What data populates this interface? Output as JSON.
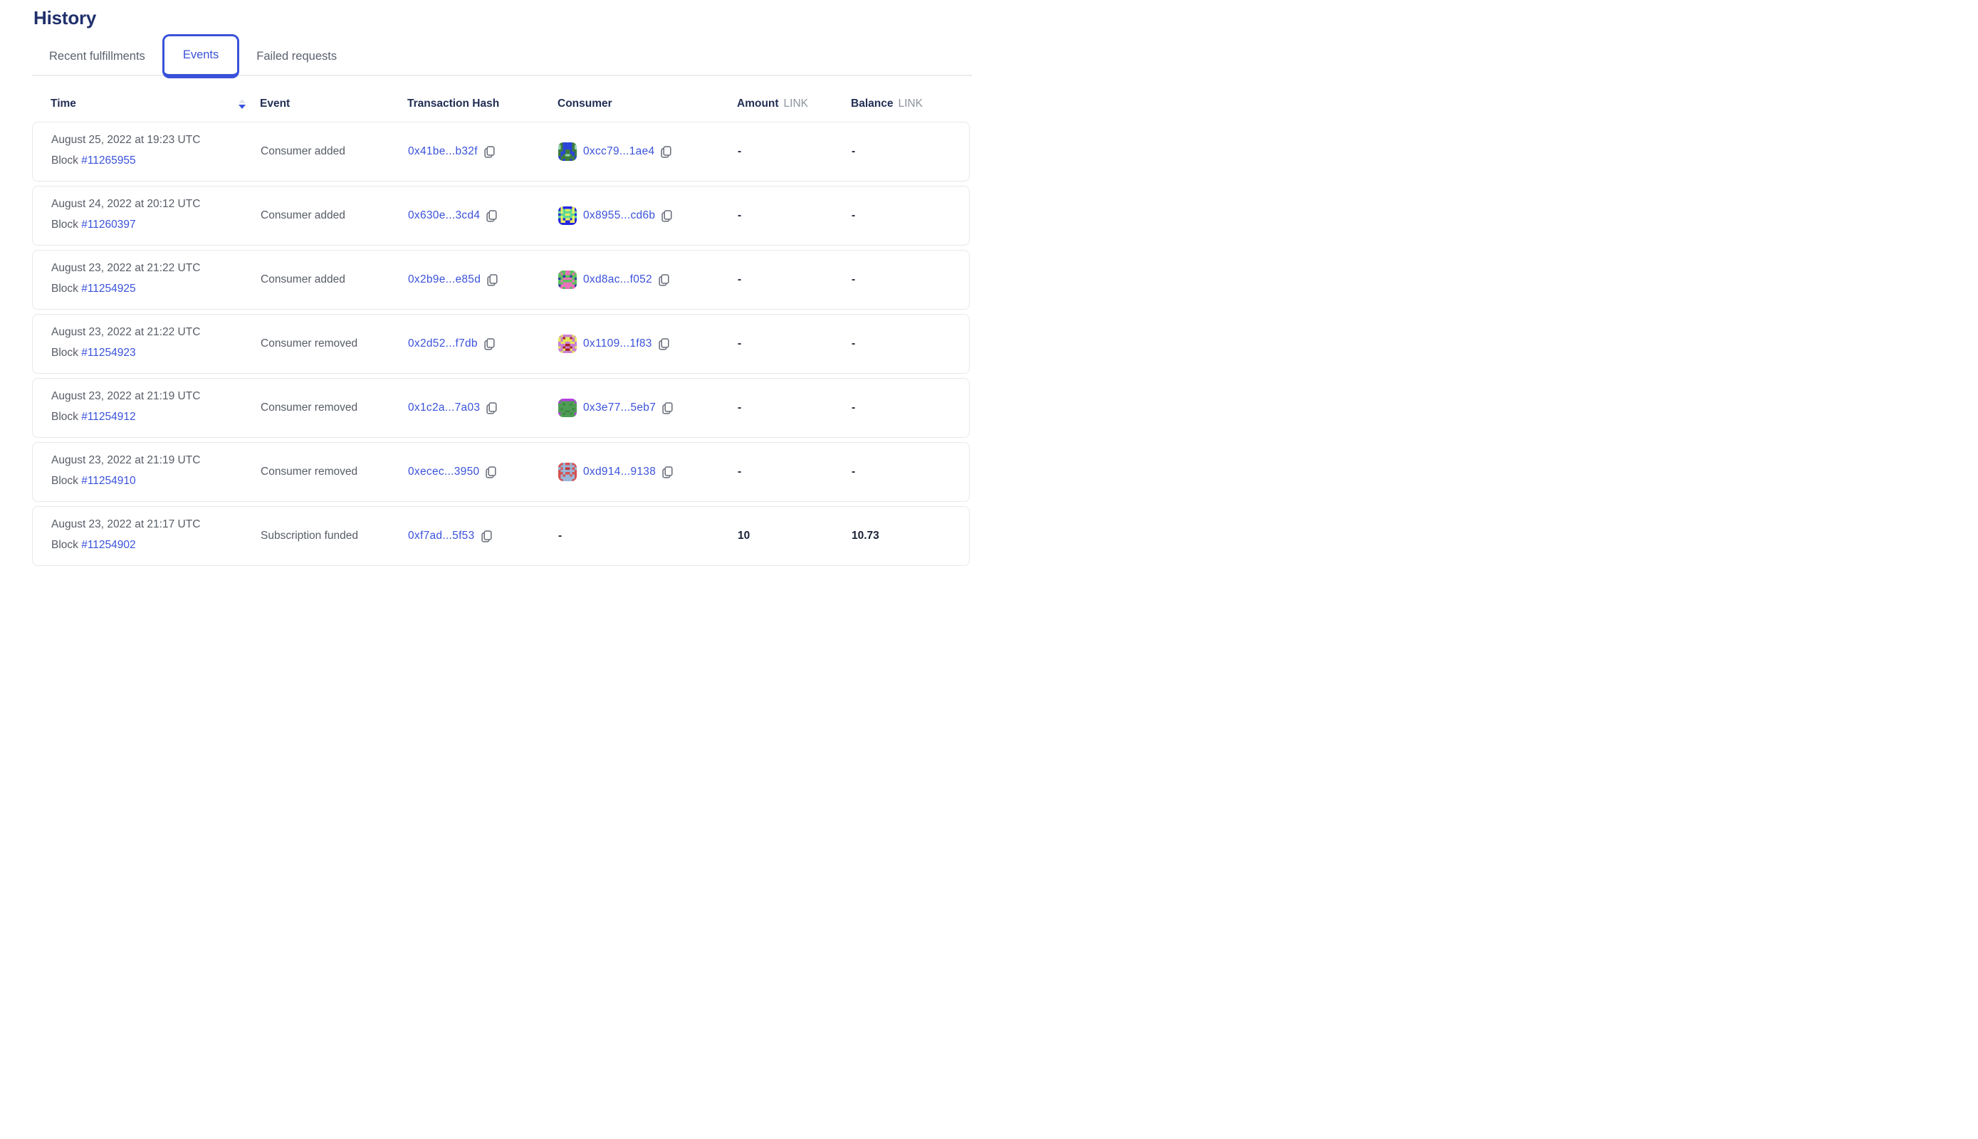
{
  "page": {
    "title": "History"
  },
  "tabs": [
    {
      "label": "Recent fulfillments",
      "active": false
    },
    {
      "label": "Events",
      "active": true
    },
    {
      "label": "Failed requests",
      "active": false
    }
  ],
  "sort": {
    "column": "time",
    "direction": "desc"
  },
  "table": {
    "columns": {
      "time": "Time",
      "event": "Event",
      "tx": "Transaction Hash",
      "consumer": "Consumer",
      "amount": "Amount",
      "amount_unit": "LINK",
      "balance": "Balance",
      "balance_unit": "LINK"
    },
    "rows": [
      {
        "date": "August 25, 2022 at 19:23 UTC",
        "block_label": "Block",
        "block": "#11265955",
        "event": "Consumer added",
        "tx_hash": "0x41be...b32f",
        "consumer": "0xcc79...1ae4",
        "amount": "-",
        "balance": "-",
        "avatar": {
          "bg": "#3e7d3d",
          "c1": "#2b44d9",
          "c2": "#96d4b4",
          "grid": [
            "00111100",
            "20111102",
            "20111102",
            "00100100",
            "01100110",
            "01022010",
            "10000001",
            "10100101"
          ]
        }
      },
      {
        "date": "August 24, 2022 at 20:12 UTC",
        "block_label": "Block",
        "block": "#11260397",
        "event": "Consumer added",
        "tx_hash": "0x630e...3cd4",
        "consumer": "0x8955...cd6b",
        "amount": "-",
        "balance": "-",
        "avatar": {
          "bg": "#2525e2",
          "c1": "#eef05e",
          "c2": "#62d796",
          "grid": [
            "01000010",
            "01211210",
            "21222212",
            "02211220",
            "21222212",
            "01011010",
            "01100110",
            "00000000"
          ]
        }
      },
      {
        "date": "August 23, 2022 at 21:22 UTC",
        "block_label": "Block",
        "block": "#11254925",
        "event": "Consumer added",
        "tx_hash": "0x2b9e...e85d",
        "consumer": "0xd8ac...f052",
        "amount": "-",
        "balance": "-",
        "avatar": {
          "bg": "#5cc25c",
          "c1": "#e873b8",
          "c2": "#2b3fa0",
          "grid": [
            "10011001",
            "01011010",
            "00200200",
            "20111102",
            "01000010",
            "00111100",
            "21111112",
            "11011011"
          ]
        }
      },
      {
        "date": "August 23, 2022 at 21:22 UTC",
        "block_label": "Block",
        "block": "#11254923",
        "event": "Consumer removed",
        "tx_hash": "0x2d52...f7db",
        "consumer": "0x1109...1f83",
        "amount": "-",
        "balance": "-",
        "avatar": {
          "bg": "#cb7fd2",
          "c1": "#e6e55e",
          "c2": "#a82525",
          "grid": [
            "01000010",
            "10211201",
            "10111101",
            "01100110",
            "00022000",
            "10200201",
            "00122100",
            "01000010"
          ]
        }
      },
      {
        "date": "August 23, 2022 at 21:19 UTC",
        "block_label": "Block",
        "block": "#11254912",
        "event": "Consumer removed",
        "tx_hash": "0x1c2a...7a03",
        "consumer": "0x3e77...5eb7",
        "amount": "-",
        "balance": "-",
        "avatar": {
          "bg": "#4f9c55",
          "c1": "#b43fe0",
          "c2": "#3f8746",
          "grid": [
            "01111110",
            "10000001",
            "00200200",
            "00000000",
            "02000020",
            "00022000",
            "10200201",
            "00000000"
          ]
        }
      },
      {
        "date": "August 23, 2022 at 21:19 UTC",
        "block_label": "Block",
        "block": "#11254910",
        "event": "Consumer removed",
        "tx_hash": "0xecec...3950",
        "consumer": "0xd914...9138",
        "amount": "-",
        "balance": "-",
        "avatar": {
          "bg": "#d45252",
          "c1": "#9ab6d8",
          "c2": "#b83a3a",
          "grid": [
            "00100100",
            "01111110",
            "10122101",
            "01111110",
            "00100100",
            "01011010",
            "01111110",
            "00111100"
          ]
        }
      },
      {
        "date": "August 23, 2022 at 21:17 UTC",
        "block_label": "Block",
        "block": "#11254902",
        "event": "Subscription funded",
        "tx_hash": "0xf7ad...5f53",
        "consumer": "-",
        "amount": "10",
        "balance": "10.73",
        "avatar": null
      }
    ]
  },
  "colors": {
    "accent_blue": "#3a52d9",
    "title_navy": "#20306b",
    "header_navy": "#222e55",
    "text_gray": "#575c66",
    "value_dark": "#1c2338",
    "card_border": "#e7e8ea",
    "divider": "#ececee",
    "sort_inactive": "#e0e4ea",
    "copy_icon": "#646a76"
  }
}
